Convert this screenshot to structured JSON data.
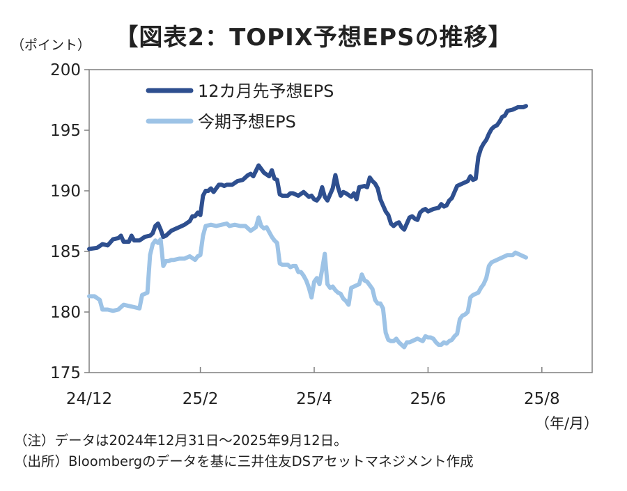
{
  "title": "【図表2：TOPIX予想EPSの推移】",
  "y_unit_label": "（ポイント）",
  "x_unit_label": "（年/月）",
  "notes": {
    "note": "（注）データは2024年12月31日～2025年9月12日。",
    "source": "（出所）Bloombergのデータを基に三井住友DSアセットマネジメント作成"
  },
  "colors": {
    "series_12m": "#2e4f8f",
    "series_current": "#9dc3e6",
    "axis": "#7f7f7f"
  },
  "chart_data": {
    "type": "line",
    "title": "【図表2：TOPIX予想EPSの推移】",
    "ylabel": "（ポイント）",
    "xlabel": "（年/月）",
    "ylim": [
      175,
      200
    ],
    "yticks": [
      175,
      180,
      185,
      190,
      195,
      200
    ],
    "xlim": [
      0,
      190
    ],
    "xticks": [
      {
        "pos": 0,
        "label": "24/12"
      },
      {
        "pos": 42,
        "label": "25/2"
      },
      {
        "pos": 85,
        "label": "25/4"
      },
      {
        "pos": 128,
        "label": "25/6"
      },
      {
        "pos": 171,
        "label": "25/8"
      }
    ],
    "grid": false,
    "legend": "top-left",
    "series": [
      {
        "name": "12カ月先予想EPS",
        "color": "#2e4f8f",
        "points": [
          [
            0,
            185.2
          ],
          [
            3,
            185.3
          ],
          [
            5,
            185.6
          ],
          [
            7,
            185.5
          ],
          [
            9,
            186.0
          ],
          [
            11,
            186.1
          ],
          [
            12,
            186.3
          ],
          [
            13,
            185.8
          ],
          [
            15,
            185.8
          ],
          [
            16,
            186.3
          ],
          [
            17,
            185.9
          ],
          [
            19,
            185.9
          ],
          [
            21,
            186.2
          ],
          [
            23,
            186.3
          ],
          [
            24,
            186.5
          ],
          [
            25,
            187.1
          ],
          [
            26,
            187.3
          ],
          [
            27,
            186.8
          ],
          [
            28,
            186.2
          ],
          [
            29,
            186.3
          ],
          [
            31,
            186.7
          ],
          [
            33,
            186.9
          ],
          [
            35,
            187.1
          ],
          [
            36,
            187.2
          ],
          [
            38,
            187.5
          ],
          [
            39,
            187.9
          ],
          [
            40,
            187.9
          ],
          [
            41,
            188.2
          ],
          [
            42,
            188.0
          ],
          [
            43,
            189.6
          ],
          [
            44,
            190.0
          ],
          [
            45,
            190.0
          ],
          [
            46,
            190.2
          ],
          [
            47,
            189.9
          ],
          [
            48,
            190.2
          ],
          [
            49,
            190.5
          ],
          [
            50,
            190.5
          ],
          [
            51,
            190.4
          ],
          [
            52,
            190.5
          ],
          [
            54,
            190.5
          ],
          [
            56,
            190.8
          ],
          [
            58,
            190.9
          ],
          [
            60,
            191.3
          ],
          [
            61,
            191.4
          ],
          [
            62,
            191.2
          ],
          [
            64,
            192.1
          ],
          [
            65,
            191.8
          ],
          [
            66,
            191.5
          ],
          [
            68,
            191.2
          ],
          [
            69,
            191.7
          ],
          [
            70,
            191.0
          ],
          [
            71,
            190.9
          ],
          [
            72,
            189.7
          ],
          [
            73,
            189.6
          ],
          [
            75,
            189.6
          ],
          [
            76,
            189.8
          ],
          [
            77,
            189.8
          ],
          [
            79,
            189.6
          ],
          [
            81,
            189.9
          ],
          [
            82,
            189.7
          ],
          [
            83,
            189.5
          ],
          [
            84,
            189.6
          ],
          [
            85,
            189.3
          ],
          [
            86,
            189.2
          ],
          [
            87,
            189.5
          ],
          [
            88,
            190.3
          ],
          [
            89,
            189.5
          ],
          [
            90,
            189.2
          ],
          [
            91,
            189.7
          ],
          [
            92,
            190.2
          ],
          [
            93,
            191.3
          ],
          [
            94,
            190.3
          ],
          [
            95,
            189.6
          ],
          [
            96,
            189.9
          ],
          [
            97,
            189.8
          ],
          [
            99,
            189.5
          ],
          [
            100,
            189.8
          ],
          [
            101,
            189.3
          ],
          [
            102,
            190.3
          ],
          [
            104,
            190.4
          ],
          [
            105,
            190.3
          ],
          [
            106,
            191.1
          ],
          [
            107,
            190.8
          ],
          [
            108,
            190.6
          ],
          [
            109,
            190.2
          ],
          [
            110,
            189.3
          ],
          [
            111,
            188.8
          ],
          [
            112,
            188.3
          ],
          [
            113,
            188.0
          ],
          [
            114,
            187.3
          ],
          [
            115,
            187.1
          ],
          [
            116,
            187.3
          ],
          [
            117,
            187.4
          ],
          [
            118,
            187.0
          ],
          [
            119,
            186.8
          ],
          [
            120,
            187.3
          ],
          [
            121,
            187.8
          ],
          [
            122,
            187.9
          ],
          [
            123,
            187.7
          ],
          [
            124,
            187.6
          ],
          [
            125,
            188.2
          ],
          [
            126,
            188.4
          ],
          [
            127,
            188.5
          ],
          [
            128,
            188.3
          ],
          [
            130,
            188.5
          ],
          [
            132,
            188.6
          ],
          [
            133,
            188.9
          ],
          [
            134,
            188.7
          ],
          [
            135,
            188.8
          ],
          [
            136,
            189.2
          ],
          [
            137,
            189.4
          ],
          [
            138,
            189.9
          ],
          [
            139,
            190.4
          ],
          [
            140,
            190.5
          ],
          [
            142,
            190.7
          ],
          [
            143,
            190.8
          ],
          [
            144,
            191.2
          ],
          [
            145,
            190.9
          ],
          [
            146,
            191.0
          ],
          [
            147,
            192.8
          ],
          [
            148,
            193.5
          ],
          [
            149,
            193.9
          ],
          [
            150,
            194.2
          ],
          [
            151,
            194.7
          ],
          [
            152,
            195.1
          ],
          [
            153,
            195.3
          ],
          [
            154,
            195.4
          ],
          [
            155,
            195.7
          ],
          [
            156,
            196.1
          ],
          [
            157,
            196.2
          ],
          [
            158,
            196.6
          ],
          [
            160,
            196.7
          ],
          [
            162,
            196.9
          ],
          [
            164,
            196.9
          ],
          [
            165,
            197.0
          ]
        ]
      },
      {
        "name": "今期予想EPS",
        "color": "#9dc3e6",
        "points": [
          [
            0,
            181.3
          ],
          [
            2,
            181.3
          ],
          [
            4,
            181.0
          ],
          [
            5,
            180.2
          ],
          [
            7,
            180.2
          ],
          [
            9,
            180.1
          ],
          [
            11,
            180.2
          ],
          [
            12,
            180.4
          ],
          [
            13,
            180.6
          ],
          [
            15,
            180.5
          ],
          [
            17,
            180.4
          ],
          [
            19,
            180.3
          ],
          [
            20,
            181.4
          ],
          [
            21,
            181.5
          ],
          [
            22,
            181.6
          ],
          [
            23,
            184.7
          ],
          [
            24,
            185.6
          ],
          [
            25,
            185.9
          ],
          [
            26,
            185.7
          ],
          [
            27,
            186.0
          ],
          [
            28,
            183.8
          ],
          [
            29,
            184.2
          ],
          [
            30,
            184.2
          ],
          [
            31,
            184.3
          ],
          [
            32,
            184.3
          ],
          [
            34,
            184.4
          ],
          [
            36,
            184.4
          ],
          [
            38,
            184.6
          ],
          [
            40,
            184.3
          ],
          [
            41,
            184.6
          ],
          [
            42,
            184.7
          ],
          [
            43,
            186.3
          ],
          [
            44,
            187.1
          ],
          [
            46,
            187.2
          ],
          [
            48,
            187.1
          ],
          [
            50,
            187.2
          ],
          [
            52,
            187.3
          ],
          [
            53,
            187.1
          ],
          [
            55,
            187.2
          ],
          [
            57,
            187.1
          ],
          [
            59,
            187.1
          ],
          [
            61,
            186.7
          ],
          [
            63,
            187.0
          ],
          [
            64,
            187.8
          ],
          [
            65,
            187.1
          ],
          [
            66,
            186.9
          ],
          [
            67,
            187.0
          ],
          [
            68,
            186.6
          ],
          [
            69,
            186.2
          ],
          [
            70,
            185.9
          ],
          [
            71,
            185.7
          ],
          [
            72,
            184.0
          ],
          [
            73,
            183.9
          ],
          [
            75,
            183.9
          ],
          [
            76,
            183.7
          ],
          [
            77,
            183.8
          ],
          [
            78,
            183.8
          ],
          [
            79,
            183.3
          ],
          [
            80,
            183.3
          ],
          [
            81,
            183.0
          ],
          [
            82,
            182.6
          ],
          [
            83,
            182.0
          ],
          [
            84,
            181.2
          ],
          [
            85,
            182.5
          ],
          [
            86,
            182.8
          ],
          [
            87,
            182.3
          ],
          [
            88,
            183.5
          ],
          [
            89,
            184.8
          ],
          [
            90,
            182.3
          ],
          [
            91,
            182.0
          ],
          [
            92,
            182.1
          ],
          [
            93,
            181.8
          ],
          [
            94,
            181.6
          ],
          [
            95,
            181.5
          ],
          [
            96,
            181.1
          ],
          [
            97,
            180.9
          ],
          [
            98,
            180.6
          ],
          [
            99,
            182.0
          ],
          [
            100,
            182.1
          ],
          [
            101,
            182.2
          ],
          [
            102,
            182.3
          ],
          [
            103,
            183.1
          ],
          [
            104,
            182.6
          ],
          [
            105,
            182.5
          ],
          [
            106,
            182.2
          ],
          [
            107,
            181.9
          ],
          [
            108,
            181.0
          ],
          [
            109,
            180.7
          ],
          [
            110,
            180.7
          ],
          [
            111,
            180.3
          ],
          [
            112,
            178.3
          ],
          [
            113,
            177.7
          ],
          [
            114,
            177.6
          ],
          [
            115,
            177.6
          ],
          [
            116,
            177.8
          ],
          [
            117,
            177.5
          ],
          [
            118,
            177.3
          ],
          [
            119,
            177.1
          ],
          [
            120,
            177.5
          ],
          [
            121,
            177.5
          ],
          [
            122,
            177.6
          ],
          [
            123,
            177.7
          ],
          [
            124,
            177.8
          ],
          [
            125,
            177.7
          ],
          [
            126,
            177.6
          ],
          [
            127,
            178.0
          ],
          [
            128,
            177.9
          ],
          [
            129,
            177.9
          ],
          [
            130,
            177.8
          ],
          [
            131,
            177.5
          ],
          [
            132,
            177.3
          ],
          [
            133,
            177.3
          ],
          [
            134,
            177.5
          ],
          [
            135,
            177.4
          ],
          [
            136,
            177.6
          ],
          [
            137,
            177.7
          ],
          [
            138,
            178.0
          ],
          [
            139,
            178.2
          ],
          [
            140,
            179.4
          ],
          [
            141,
            179.7
          ],
          [
            142,
            179.8
          ],
          [
            143,
            180.0
          ],
          [
            144,
            181.2
          ],
          [
            145,
            181.4
          ],
          [
            146,
            181.5
          ],
          [
            147,
            181.6
          ],
          [
            148,
            182.0
          ],
          [
            149,
            182.3
          ],
          [
            150,
            182.8
          ],
          [
            151,
            183.8
          ],
          [
            152,
            184.1
          ],
          [
            153,
            184.2
          ],
          [
            154,
            184.3
          ],
          [
            155,
            184.4
          ],
          [
            156,
            184.5
          ],
          [
            157,
            184.6
          ],
          [
            158,
            184.7
          ],
          [
            160,
            184.7
          ],
          [
            161,
            184.9
          ],
          [
            162,
            184.8
          ],
          [
            163,
            184.7
          ],
          [
            164,
            184.6
          ],
          [
            165,
            184.5
          ]
        ]
      }
    ]
  }
}
